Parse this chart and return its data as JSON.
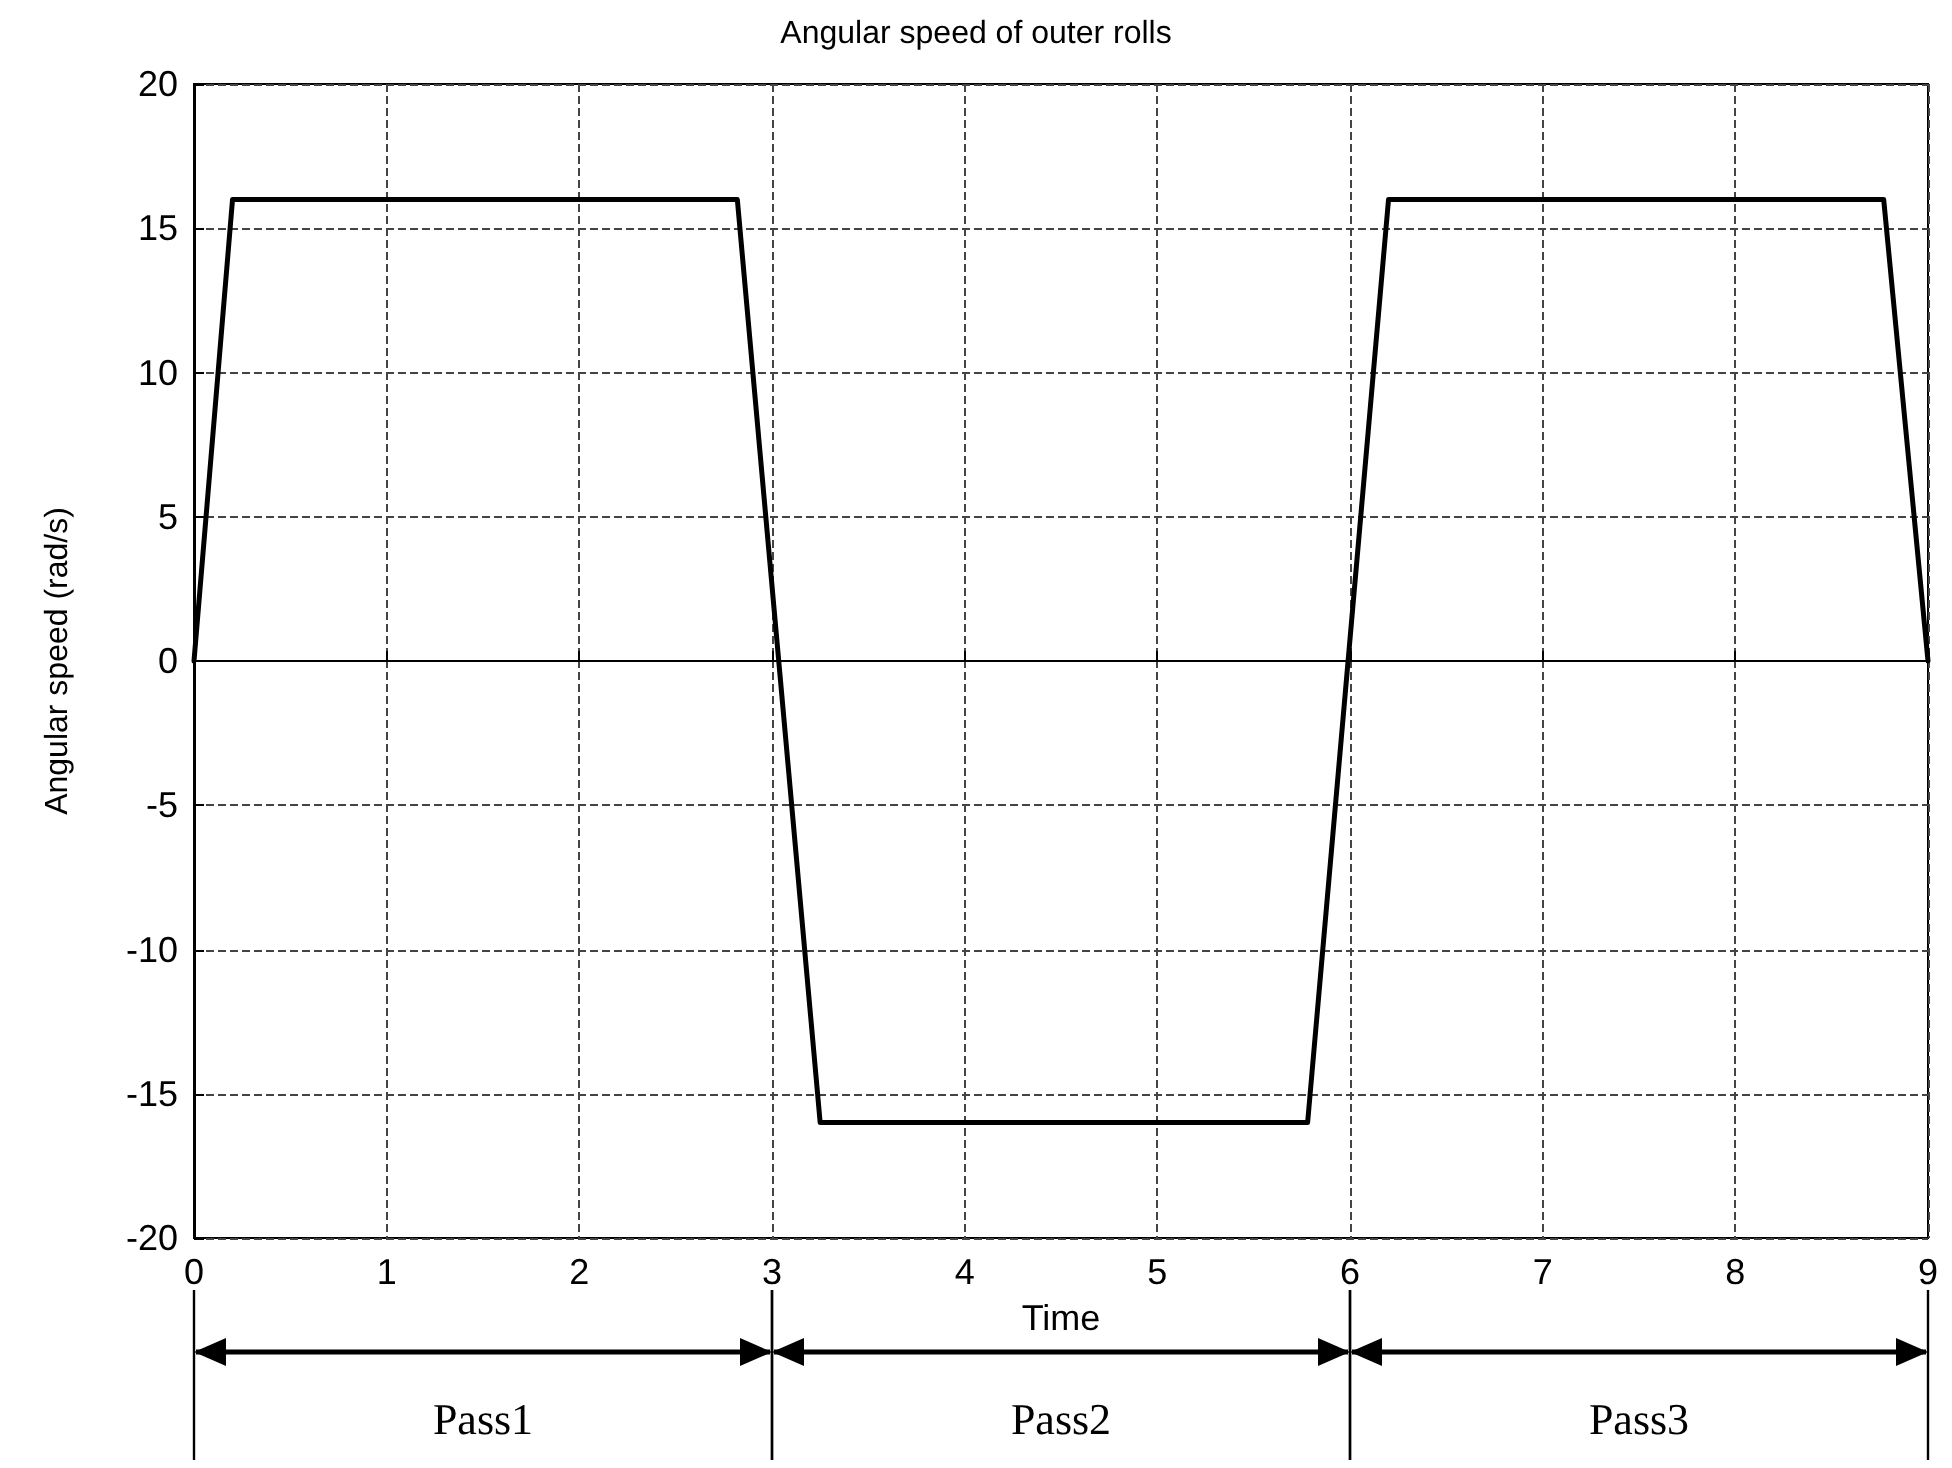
{
  "chart_data": {
    "type": "line",
    "title": "Angular speed of outer rolls",
    "xlabel": "Time",
    "ylabel": "Angular speed (rad/s)",
    "x": [
      0,
      0.2,
      2.82,
      3.25,
      5.78,
      6.2,
      8.77,
      9
    ],
    "series": [
      {
        "color": "#000000",
        "values": [
          0,
          16,
          16,
          -16,
          -16,
          16,
          16,
          0
        ]
      }
    ],
    "xlim": [
      0,
      9
    ],
    "xticks": [
      0,
      1,
      2,
      3,
      4,
      5,
      6,
      7,
      8,
      9
    ],
    "ylim": [
      -20,
      20
    ],
    "yticks": [
      -20,
      -15,
      -10,
      -5,
      0,
      5,
      10,
      15,
      20
    ],
    "grid": true,
    "marker": "none",
    "line_style": "solid",
    "annotations": [
      "Pass1",
      "Pass2",
      "Pass3"
    ]
  }
}
